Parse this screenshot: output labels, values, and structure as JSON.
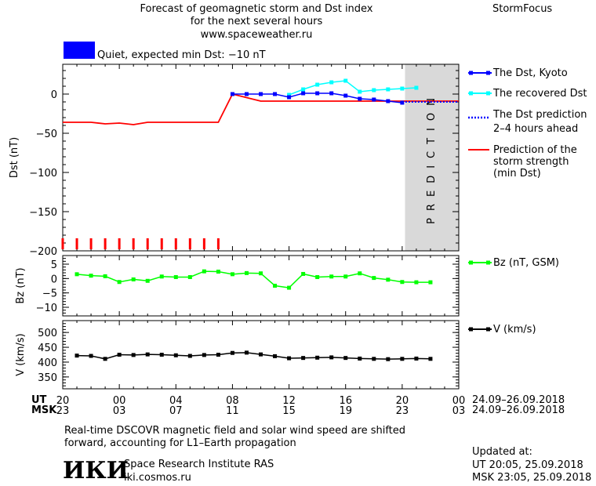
{
  "header": {
    "title_line1": "Forecast of geomagnetic storm and Dst index",
    "title_line2": "for the next several hours",
    "url": "www.spaceweather.ru",
    "brand": "StormFocus"
  },
  "status": {
    "text": "Quiet, expected min Dst: −10 nT",
    "color": "#0000ff"
  },
  "legend": {
    "dst_kyoto": "The Dst, Kyoto",
    "dst_recovered": "The recovered Dst",
    "dst_prediction_1": "The Dst prediction",
    "dst_prediction_2": "2–4 hours ahead",
    "storm_1": "Prediction of the",
    "storm_2": "storm strength",
    "storm_3": "(min Dst)",
    "bz": "Bz (nT, GSM)",
    "v": "V (km/s)"
  },
  "colors": {
    "kyoto": "#0000ff",
    "recovered": "#00ffff",
    "prediction": "#0000ff",
    "storm": "#ff0000",
    "bz": "#00ff00",
    "v": "#000000",
    "prediction_band": "#d9d9d9"
  },
  "prediction_label": "PREDICTION",
  "time_axis": {
    "ut_label": "UT",
    "msk_label": "MSK",
    "ut_ticks": [
      "20",
      "00",
      "04",
      "08",
      "12",
      "16",
      "20",
      "00"
    ],
    "msk_ticks": [
      "23",
      "03",
      "07",
      "11",
      "15",
      "19",
      "23",
      "03"
    ],
    "ut_range": "24.09–26.09.2018",
    "msk_range": "24.09–26.09.2018"
  },
  "footer": {
    "note_line1": "Real-time DSCOVR magnetic field and solar wind speed are shifted",
    "note_line2": "forward, accounting for L1–Earth propagation",
    "logo": "ИКИ",
    "institute": "Space Research Institute RAS",
    "site": "iki.cosmos.ru",
    "updated_label": "Updated at:",
    "updated_ut": "UT  20:05, 25.09.2018",
    "updated_msk": "MSK 23:05, 25.09.2018"
  },
  "chart_data": [
    {
      "type": "line",
      "ylabel": "Dst (nT)",
      "ylim": [
        -200,
        38
      ],
      "yticks": [
        0,
        -50,
        -100,
        -150,
        -200
      ],
      "xlim": [
        0,
        28
      ],
      "prediction_from": 24.2,
      "series": [
        {
          "name": "The Dst, Kyoto",
          "x": [
            12,
            13,
            14,
            15,
            16,
            17,
            18,
            19,
            20,
            21,
            22,
            23,
            24
          ],
          "y": [
            0,
            0,
            0,
            0,
            -4,
            1,
            1,
            1,
            -2,
            -6,
            -7,
            -9,
            -11
          ]
        },
        {
          "name": "The recovered Dst",
          "x": [
            16,
            17,
            18,
            19,
            20,
            21,
            22,
            23,
            24,
            25
          ],
          "y": [
            -1,
            6,
            12,
            15,
            17,
            3,
            5,
            6,
            7,
            8
          ]
        },
        {
          "name": "The Dst prediction 2–4 hours ahead",
          "x": [
            24,
            28
          ],
          "y": [
            -10,
            -10
          ]
        },
        {
          "name": "Prediction of the storm strength (min Dst)",
          "x": [
            0,
            2,
            3,
            4,
            5,
            6,
            7,
            8,
            11,
            12,
            14,
            28
          ],
          "y": [
            -36,
            -36,
            -38,
            -37,
            -39,
            -36,
            -36,
            -36,
            -36,
            0,
            -9,
            -9
          ]
        }
      ],
      "kp_bars_x": [
        0,
        1,
        2,
        3,
        4,
        5,
        6,
        7,
        8,
        9,
        10,
        11
      ]
    },
    {
      "type": "line",
      "ylabel": "Bz (nT)",
      "ylim": [
        -13,
        8
      ],
      "yticks": [
        5,
        0,
        -5,
        -10
      ],
      "series": [
        {
          "name": "Bz (nT, GSM)",
          "x": [
            1,
            2,
            3,
            4,
            5,
            6,
            7,
            8,
            9,
            10,
            11,
            12,
            13,
            14,
            15,
            16,
            17,
            18,
            19,
            20,
            21,
            22,
            23,
            24,
            25,
            26
          ],
          "y": [
            1.5,
            1,
            0.8,
            -1.2,
            -0.3,
            -0.8,
            0.7,
            0.5,
            0.5,
            2.5,
            2.4,
            1.5,
            1.9,
            1.8,
            -2.5,
            -3.2,
            1.6,
            0.5,
            0.7,
            0.7,
            1.8,
            0.2,
            -0.4,
            -1.2,
            -1.3,
            -1.3
          ]
        }
      ]
    },
    {
      "type": "line",
      "ylabel": "V (km/s)",
      "ylim": [
        310,
        540
      ],
      "yticks": [
        500,
        450,
        400,
        350
      ],
      "series": [
        {
          "name": "V (km/s)",
          "x": [
            1,
            2,
            3,
            4,
            5,
            6,
            7,
            8,
            9,
            10,
            11,
            12,
            13,
            14,
            15,
            16,
            17,
            18,
            19,
            20,
            21,
            22,
            23,
            24,
            25,
            26
          ],
          "y": [
            422,
            421,
            411,
            425,
            424,
            426,
            425,
            423,
            421,
            424,
            425,
            431,
            432,
            426,
            420,
            413,
            414,
            415,
            416,
            414,
            412,
            411,
            410,
            411,
            412,
            411
          ]
        }
      ]
    }
  ]
}
